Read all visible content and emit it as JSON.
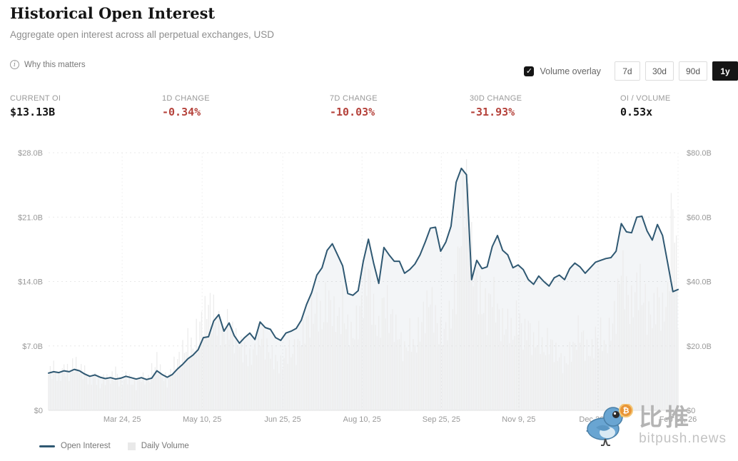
{
  "header": {
    "title": "Historical Open Interest",
    "subtitle": "Aggregate open interest across all perpetual exchanges, USD"
  },
  "controls": {
    "why_link": "Why this matters",
    "volume_overlay_label": "Volume overlay",
    "volume_overlay_checked": true,
    "range_buttons": [
      "7d",
      "30d",
      "90d",
      "1y"
    ],
    "active_range": "1y"
  },
  "icons": {
    "info": "i",
    "check": "✓",
    "btc": "₿"
  },
  "stats": [
    {
      "label": "CURRENT OI",
      "value": "$13.13B",
      "tone": "dark"
    },
    {
      "label": "1D CHANGE",
      "value": "-0.34%",
      "tone": "red"
    },
    {
      "label": "7D CHANGE",
      "value": "-10.03%",
      "tone": "red"
    },
    {
      "label": "30D CHANGE",
      "value": "-31.93%",
      "tone": "red"
    },
    {
      "label": "OI / VOLUME",
      "value": "0.53x",
      "tone": "dark"
    }
  ],
  "legend": [
    {
      "label": "Open Interest",
      "swatch": "line"
    },
    {
      "label": "Daily Volume",
      "swatch": "square"
    }
  ],
  "watermark": {
    "cn": "比推",
    "en": "bitpush.news"
  },
  "colors": {
    "line": "#2f5872",
    "area_fill": "rgba(47,88,114,0.06)",
    "volume_bar": "#ececec",
    "negative": "#b5433c",
    "grid": "#e8e8e8",
    "axis_text": "#999999"
  },
  "chart_data": {
    "type": "line",
    "title": "Historical Open Interest",
    "legend_position": "bottom-left",
    "grid": "dashed",
    "y_left": {
      "axis_label": "Open Interest (USD)",
      "max": 28,
      "values": [
        0,
        7,
        14,
        21,
        28
      ],
      "labels": [
        "$0",
        "$7.0B",
        "$14.0B",
        "$21.0B",
        "$28.0B"
      ]
    },
    "y_right": {
      "axis_label": "Daily Volume (USD)",
      "max": 80,
      "values": [
        0,
        20,
        40,
        60,
        80
      ],
      "labels": [
        "$0",
        "$20.0B",
        "$40.0B",
        "$60.0B",
        "$80.0B"
      ]
    },
    "x_ticks": {
      "labels": [
        "Mar 24, 25",
        "May 10, 25",
        "Jun 25, 25",
        "Aug 10, 25",
        "Sep 25, 25",
        "Nov 9, 25",
        "Dec 26, 25",
        "Feb 10, 26"
      ],
      "fracs": [
        0.117,
        0.244,
        0.372,
        0.498,
        0.624,
        0.747,
        0.873,
        1.0
      ]
    },
    "dates": [
      "2025-02-09",
      "2025-02-12",
      "2025-02-15",
      "2025-02-18",
      "2025-02-21",
      "2025-02-24",
      "2025-02-27",
      "2025-03-02",
      "2025-03-05",
      "2025-03-08",
      "2025-03-11",
      "2025-03-14",
      "2025-03-17",
      "2025-03-20",
      "2025-03-23",
      "2025-03-26",
      "2025-03-29",
      "2025-04-01",
      "2025-04-04",
      "2025-04-07",
      "2025-04-10",
      "2025-04-13",
      "2025-04-16",
      "2025-04-19",
      "2025-04-22",
      "2025-04-25",
      "2025-04-28",
      "2025-05-01",
      "2025-05-04",
      "2025-05-07",
      "2025-05-10",
      "2025-05-13",
      "2025-05-16",
      "2025-05-19",
      "2025-05-22",
      "2025-05-25",
      "2025-05-28",
      "2025-05-31",
      "2025-06-03",
      "2025-06-06",
      "2025-06-09",
      "2025-06-12",
      "2025-06-15",
      "2025-06-18",
      "2025-06-21",
      "2025-06-24",
      "2025-06-27",
      "2025-06-30",
      "2025-07-03",
      "2025-07-06",
      "2025-07-09",
      "2025-07-12",
      "2025-07-15",
      "2025-07-18",
      "2025-07-21",
      "2025-07-24",
      "2025-07-27",
      "2025-07-30",
      "2025-08-02",
      "2025-08-05",
      "2025-08-08",
      "2025-08-11",
      "2025-08-14",
      "2025-08-17",
      "2025-08-20",
      "2025-08-23",
      "2025-08-26",
      "2025-08-29",
      "2025-09-01",
      "2025-09-04",
      "2025-09-07",
      "2025-09-10",
      "2025-09-13",
      "2025-09-16",
      "2025-09-19",
      "2025-09-22",
      "2025-09-25",
      "2025-09-28",
      "2025-10-01",
      "2025-10-04",
      "2025-10-07",
      "2025-10-10",
      "2025-10-13",
      "2025-10-16",
      "2025-10-19",
      "2025-10-22",
      "2025-10-25",
      "2025-10-28",
      "2025-10-31",
      "2025-11-03",
      "2025-11-06",
      "2025-11-09",
      "2025-11-12",
      "2025-11-15",
      "2025-11-18",
      "2025-11-21",
      "2025-11-24",
      "2025-11-27",
      "2025-11-30",
      "2025-12-03",
      "2025-12-06",
      "2025-12-09",
      "2025-12-12",
      "2025-12-15",
      "2025-12-18",
      "2025-12-21",
      "2025-12-24",
      "2025-12-27",
      "2025-12-30",
      "2026-01-02",
      "2026-01-05",
      "2026-01-08",
      "2026-01-11",
      "2026-01-14",
      "2026-01-17",
      "2026-01-20",
      "2026-01-23",
      "2026-01-26",
      "2026-01-29",
      "2026-02-01",
      "2026-02-04",
      "2026-02-07",
      "2026-02-10"
    ],
    "series": [
      {
        "name": "Open Interest",
        "axis": "left",
        "unit": "USD billions",
        "style": "line",
        "values": [
          4.05,
          4.2,
          4.1,
          4.3,
          4.2,
          4.45,
          4.3,
          3.95,
          3.7,
          3.85,
          3.6,
          3.45,
          3.55,
          3.4,
          3.5,
          3.7,
          3.55,
          3.4,
          3.55,
          3.35,
          3.5,
          4.3,
          3.9,
          3.6,
          3.9,
          4.5,
          5.0,
          5.6,
          6.0,
          6.6,
          7.9,
          8.0,
          9.7,
          10.4,
          8.6,
          9.5,
          8.1,
          7.3,
          7.9,
          8.4,
          7.7,
          9.6,
          9.0,
          8.8,
          7.9,
          7.6,
          8.4,
          8.6,
          8.9,
          9.8,
          11.5,
          12.8,
          14.7,
          15.5,
          17.4,
          18.1,
          16.9,
          15.7,
          12.7,
          12.5,
          13.0,
          16.2,
          18.6,
          16.0,
          13.8,
          17.7,
          16.9,
          16.2,
          16.2,
          14.9,
          15.3,
          15.9,
          16.9,
          18.3,
          19.8,
          19.9,
          17.3,
          18.3,
          20.0,
          24.8,
          26.3,
          25.6,
          14.2,
          16.3,
          15.4,
          15.6,
          17.8,
          19.0,
          17.4,
          16.9,
          15.5,
          15.8,
          15.3,
          14.2,
          13.7,
          14.6,
          14.0,
          13.5,
          14.4,
          14.7,
          14.2,
          15.4,
          16.0,
          15.6,
          14.9,
          15.5,
          16.1,
          16.3,
          16.5,
          16.6,
          17.3,
          20.3,
          19.4,
          19.3,
          21.0,
          21.1,
          19.5,
          18.5,
          20.2,
          19.0,
          16.0,
          12.9,
          13.13
        ]
      },
      {
        "name": "Daily Volume",
        "axis": "right",
        "unit": "USD billions",
        "style": "bar",
        "values": [
          11,
          13,
          10,
          14,
          11,
          15,
          12,
          12,
          9,
          11,
          8,
          10,
          9,
          12,
          8,
          11,
          9,
          8,
          10,
          9,
          12,
          16,
          11,
          9,
          13,
          15,
          18,
          22,
          20,
          25,
          28,
          32,
          30,
          26,
          24,
          27,
          22,
          20,
          18,
          16,
          20,
          24,
          20,
          17,
          15,
          14,
          18,
          19,
          18,
          22,
          26,
          30,
          33,
          28,
          35,
          30,
          27,
          32,
          26,
          24,
          28,
          34,
          42,
          30,
          25,
          36,
          30,
          26,
          22,
          18,
          24,
          20,
          26,
          30,
          34,
          28,
          24,
          26,
          30,
          38,
          55,
          76,
          48,
          40,
          34,
          30,
          36,
          30,
          26,
          28,
          24,
          30,
          22,
          26,
          20,
          24,
          19,
          22,
          18,
          16,
          14,
          18,
          21,
          26,
          19,
          17,
          22,
          24,
          20,
          26,
          30,
          44,
          36,
          32,
          40,
          38,
          30,
          28,
          34,
          30,
          36,
          70,
          32
        ]
      }
    ]
  }
}
